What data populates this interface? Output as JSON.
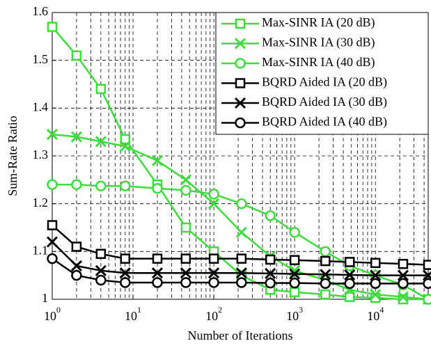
{
  "chart_data": {
    "type": "line",
    "x_label": "Number of Iterations",
    "y_label": "Sum-Rate Ratio",
    "x": [
      1,
      2,
      4,
      8,
      20,
      45,
      100,
      220,
      500,
      1000,
      2400,
      4800,
      10000,
      22000,
      45000
    ],
    "series": [
      {
        "name": "Max-SINR IA (20 dB)",
        "color": "#3ddc3d",
        "marker": "square",
        "values": [
          1.57,
          1.51,
          1.44,
          1.335,
          1.24,
          1.15,
          1.1,
          1.05,
          1.02,
          1.015,
          1.01,
          1.005,
          1.003,
          1.0,
          1.0
        ]
      },
      {
        "name": "Max-SINR IA (30 dB)",
        "color": "#3ddc3d",
        "marker": "x",
        "values": [
          1.345,
          1.34,
          1.33,
          1.32,
          1.29,
          1.25,
          1.2,
          1.14,
          1.09,
          1.06,
          1.04,
          1.02,
          1.01,
          1.005,
          1.0
        ]
      },
      {
        "name": "Max-SINR IA (40 dB)",
        "color": "#3ddc3d",
        "marker": "circle",
        "values": [
          1.24,
          1.24,
          1.237,
          1.237,
          1.232,
          1.228,
          1.22,
          1.2,
          1.175,
          1.14,
          1.1,
          1.07,
          1.05,
          1.03,
          1.0
        ]
      },
      {
        "name": "BQRD Aided IA (20 dB)",
        "color": "#000000",
        "marker": "square",
        "values": [
          1.155,
          1.11,
          1.095,
          1.085,
          1.085,
          1.085,
          1.085,
          1.085,
          1.083,
          1.082,
          1.08,
          1.078,
          1.076,
          1.074,
          1.072
        ]
      },
      {
        "name": "BQRD Aided IA (30 dB)",
        "color": "#000000",
        "marker": "x",
        "values": [
          1.12,
          1.07,
          1.06,
          1.055,
          1.055,
          1.055,
          1.055,
          1.055,
          1.054,
          1.053,
          1.052,
          1.051,
          1.05,
          1.05,
          1.05
        ]
      },
      {
        "name": "BQRD Aided IA (40 dB)",
        "color": "#000000",
        "marker": "circle",
        "values": [
          1.085,
          1.05,
          1.04,
          1.035,
          1.035,
          1.035,
          1.035,
          1.035,
          1.034,
          1.034,
          1.033,
          1.033,
          1.033,
          1.033,
          1.033
        ]
      }
    ],
    "xlim": [
      1,
      45000
    ],
    "x_log": true,
    "xticks": [
      {
        "value": 1,
        "label": "10^0"
      },
      {
        "value": 10,
        "label": "10^1"
      },
      {
        "value": 100,
        "label": "10^2"
      },
      {
        "value": 1000,
        "label": "10^3"
      },
      {
        "value": 10000,
        "label": "10^4"
      }
    ],
    "ylim": [
      1,
      1.6
    ],
    "yticks": [
      1,
      1.1,
      1.2,
      1.3,
      1.4,
      1.5,
      1.6
    ],
    "grid": true,
    "minor_grid": true,
    "legend_position": "top-right"
  }
}
